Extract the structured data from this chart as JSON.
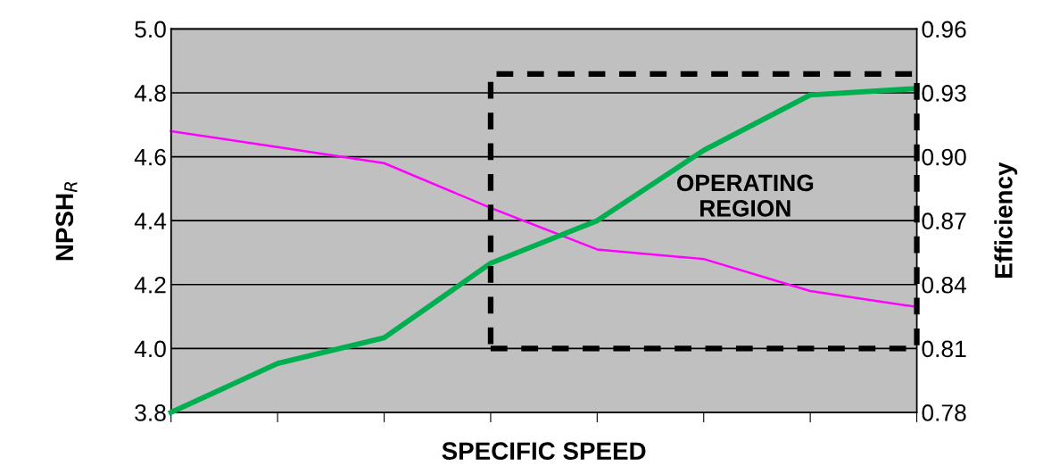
{
  "chart_data": {
    "type": "line",
    "xlabel": "SPECIFIC SPEED",
    "ylabel": "NPSH$_{R}$",
    "y2label": "Efficiency",
    "categories": [
      null,
      null,
      null,
      null,
      null,
      null,
      null,
      null
    ],
    "ylim": [
      3.8,
      5.0
    ],
    "yticks": [
      3.8,
      {
        "value": 4,
        "label": "4.0"
      },
      4.2,
      4.4,
      4.6,
      4.8,
      {
        "value": 5,
        "label": "5.0"
      }
    ],
    "y2lim": [
      0.78,
      0.96
    ],
    "y2ticks": [
      0.78,
      0.81,
      0.84,
      0.87,
      {
        "value": 0.9,
        "label": "0.90"
      },
      0.93,
      0.96
    ],
    "grid": "y",
    "series": [
      {
        "color": "#ff00ff",
        "values": [
          4.68,
          4.63,
          4.58,
          4.44,
          4.31,
          4.28,
          4.18,
          4.13
        ]
      },
      {
        "color": "#00b050",
        "axis": "y2",
        "values": [
          0.78,
          0.803,
          0.815,
          0.85,
          0.87,
          0.903,
          0.929,
          0.932
        ]
      }
    ],
    "annotations": [
      "OPERATING\nREGION"
    ]
  }
}
